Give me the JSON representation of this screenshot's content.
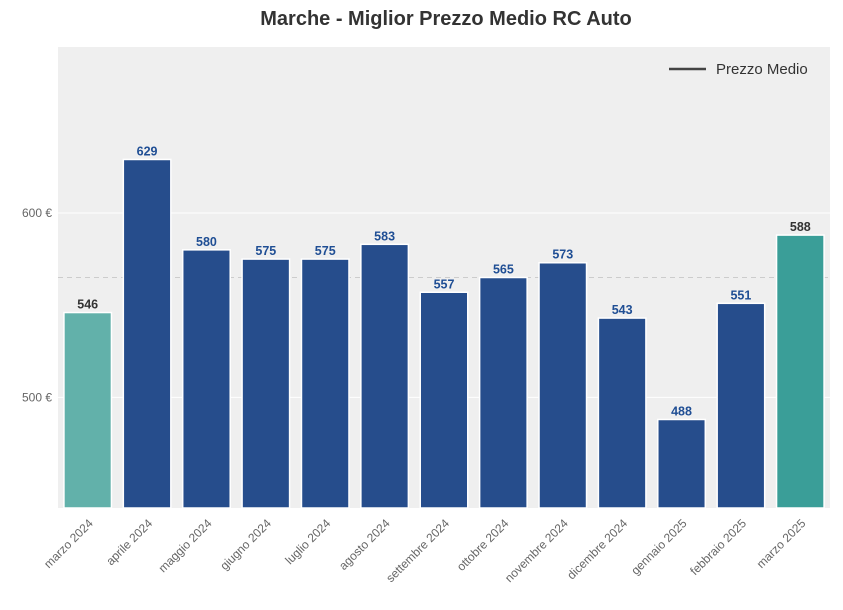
{
  "chart_data": {
    "type": "bar",
    "title": "Marche - Miglior Prezzo Medio RC Auto",
    "xlabel": "",
    "ylabel": "",
    "categories": [
      "marzo 2024",
      "aprile 2024",
      "maggio 2024",
      "giugno 2024",
      "luglio 2024",
      "agosto 2024",
      "settembre 2024",
      "ottobre 2024",
      "novembre 2024",
      "dicembre 2024",
      "gennaio 2025",
      "febbraio 2025",
      "marzo 2025"
    ],
    "values": [
      546,
      629,
      580,
      575,
      575,
      583,
      557,
      565,
      573,
      543,
      488,
      551,
      588
    ],
    "value_labels": [
      "546",
      "629",
      "580",
      "575",
      "575",
      "583",
      "557",
      "565",
      "573",
      "543",
      "488",
      "551",
      "588"
    ],
    "bar_colors": [
      "#62b1aa",
      "#264d8c",
      "#264d8c",
      "#264d8c",
      "#264d8c",
      "#264d8c",
      "#264d8c",
      "#264d8c",
      "#264d8c",
      "#264d8c",
      "#264d8c",
      "#264d8c",
      "#3a9e98"
    ],
    "label_colors": [
      "#333333",
      "#1f4e94",
      "#1f4e94",
      "#1f4e94",
      "#1f4e94",
      "#1f4e94",
      "#1f4e94",
      "#1f4e94",
      "#1f4e94",
      "#1f4e94",
      "#1f4e94",
      "#1f4e94",
      "#333333"
    ],
    "ylim": [
      440,
      690
    ],
    "yticks": [
      500,
      600
    ],
    "ytick_labels": [
      "500 €",
      "600 €"
    ],
    "reference_line": {
      "value": 565,
      "color": "#cccccc",
      "style": "dashed"
    },
    "legend": {
      "label": "Prezzo Medio",
      "placement": "top-right",
      "line_color": "#444444"
    },
    "grid": true,
    "background_color": "#efefef"
  }
}
